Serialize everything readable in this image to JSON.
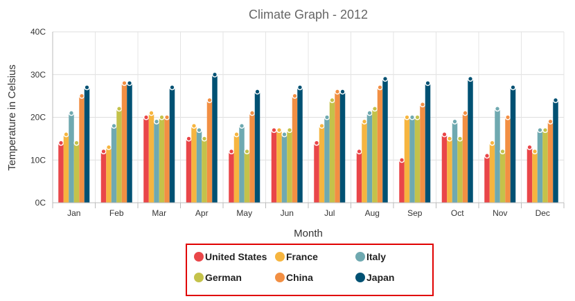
{
  "chart_data": {
    "type": "bar",
    "title": "Climate Graph - 2012",
    "xlabel": "Month",
    "ylabel": "Temperature in Celsius",
    "ylim": [
      0,
      40
    ],
    "yticks": [
      0,
      10,
      20,
      30,
      40
    ],
    "ytick_suffix": "C",
    "grid": true,
    "legend_position": "bottom",
    "categories": [
      "Jan",
      "Feb",
      "Mar",
      "Apr",
      "May",
      "Jun",
      "Jul",
      "Aug",
      "Sep",
      "Oct",
      "Nov",
      "Dec"
    ],
    "series": [
      {
        "name": "United States",
        "color": "#e94649",
        "values": [
          14,
          12,
          20,
          15,
          12,
          17,
          14,
          12,
          10,
          16,
          11,
          13
        ]
      },
      {
        "name": "France",
        "color": "#f6b53f",
        "values": [
          16,
          13,
          21,
          18,
          16,
          17,
          18,
          19,
          20,
          15,
          14,
          12
        ]
      },
      {
        "name": "Italy",
        "color": "#6fa9b0",
        "values": [
          21,
          18,
          19,
          17,
          18,
          16,
          20,
          21,
          20,
          19,
          22,
          17
        ]
      },
      {
        "name": "German",
        "color": "#c4c24a",
        "values": [
          14,
          22,
          20,
          15,
          12,
          17,
          24,
          22,
          20,
          15,
          12,
          17
        ]
      },
      {
        "name": "China",
        "color": "#f28f43",
        "values": [
          25,
          28,
          20,
          24,
          21,
          25,
          26,
          27,
          23,
          21,
          20,
          19
        ]
      },
      {
        "name": "Japan",
        "color": "#005173",
        "values": [
          27,
          28,
          27,
          30,
          26,
          27,
          26,
          29,
          28,
          29,
          27,
          24
        ]
      }
    ]
  }
}
